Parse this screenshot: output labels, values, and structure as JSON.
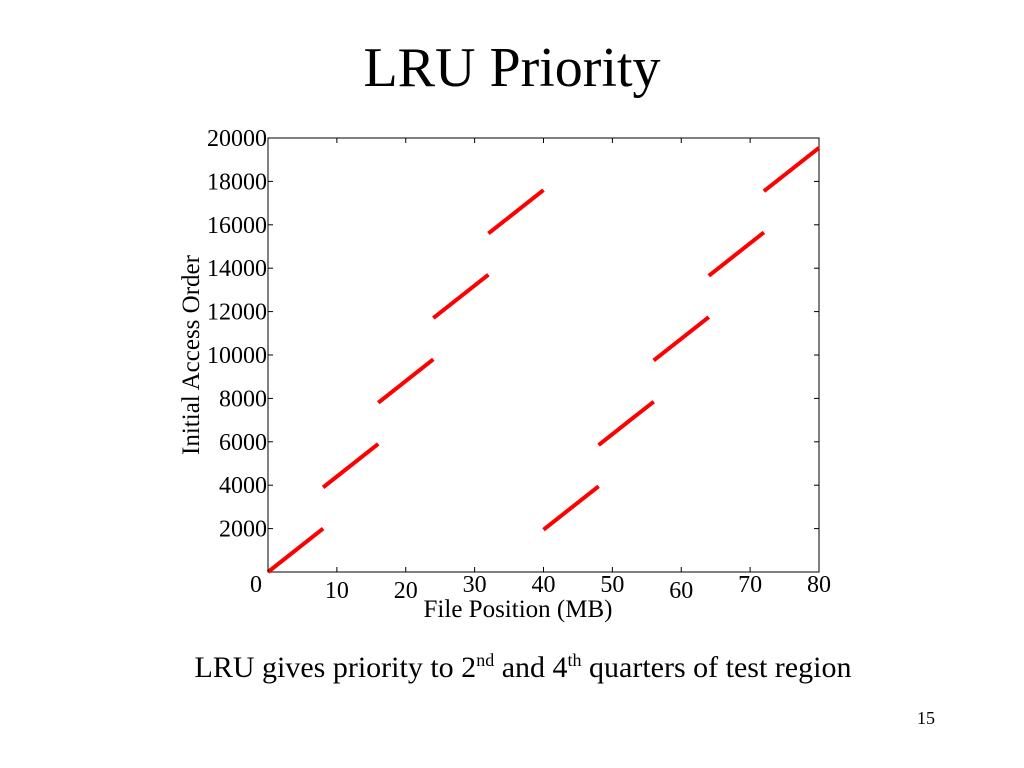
{
  "slide": {
    "title": "LRU Priority",
    "caption": {
      "part1": "LRU gives priority to 2",
      "sup1": "nd",
      "part2": " and 4",
      "sup2": "th",
      "part3": " quarters of test region"
    },
    "page_number": "15"
  },
  "chart_data": {
    "type": "line",
    "title": "",
    "xlabel": "File Position (MB)",
    "ylabel": "Initial Access Order",
    "xlim": [
      0,
      80
    ],
    "ylim": [
      0,
      20000
    ],
    "x_ticks": [
      0,
      10,
      20,
      30,
      40,
      50,
      60,
      70,
      80
    ],
    "y_ticks": [
      2000,
      4000,
      6000,
      8000,
      10000,
      12000,
      14000,
      16000,
      18000,
      20000
    ],
    "grid": false,
    "legend": "none",
    "series_color": "#ff0000",
    "series": [
      {
        "segments": [
          [
            [
              0,
              0
            ],
            [
              8,
              2000
            ]
          ],
          [
            [
              8,
              3900
            ],
            [
              16,
              5900
            ]
          ],
          [
            [
              16,
              7800
            ],
            [
              24,
              9800
            ]
          ],
          [
            [
              24,
              11700
            ],
            [
              32,
              13700
            ]
          ],
          [
            [
              32,
              15600
            ],
            [
              40,
              17600
            ]
          ],
          [
            [
              40,
              1950
            ],
            [
              48,
              3950
            ]
          ],
          [
            [
              48,
              5850
            ],
            [
              56,
              7850
            ]
          ],
          [
            [
              56,
              9750
            ],
            [
              64,
              11750
            ]
          ],
          [
            [
              64,
              13650
            ],
            [
              72,
              15650
            ]
          ],
          [
            [
              72,
              17550
            ],
            [
              80,
              19550
            ]
          ]
        ]
      }
    ]
  }
}
